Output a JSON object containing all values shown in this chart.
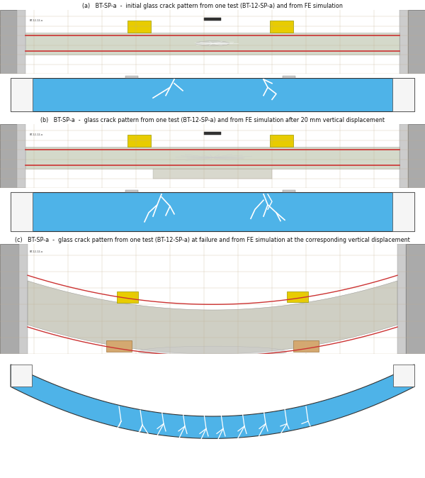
{
  "title_a": "(a)   BT-SP-a  -  initial glass crack pattern from one test (BT-12-SP-a) and from FE simulation",
  "title_b": "(b)   BT-SP-a  -  glass crack pattern from one test (BT-12-SP-a) and from FE simulation after 20 mm vertical displacement",
  "title_c": "(c)   BT-SP-a  -  glass crack pattern from one test (BT-12-SP-a) at failure and from FE simulation at the corresponding vertical displacement",
  "bg_color": "#ffffff",
  "beam_blue": "#4eb3e8",
  "label_fontsize": 5.8,
  "fig_width": 6.0,
  "fig_height": 6.74,
  "panels": {
    "title_a": [
      0,
      2,
      600,
      13
    ],
    "photo_a": [
      0,
      14,
      600,
      90
    ],
    "sim_a": [
      0,
      105,
      600,
      57
    ],
    "title_b": [
      0,
      163,
      600,
      13
    ],
    "photo_b": [
      0,
      175,
      600,
      90
    ],
    "sim_b": [
      0,
      266,
      600,
      65
    ],
    "title_c": [
      0,
      332,
      600,
      13
    ],
    "photo_c": [
      0,
      344,
      600,
      155
    ],
    "sim_c": [
      0,
      500,
      600,
      174
    ]
  }
}
